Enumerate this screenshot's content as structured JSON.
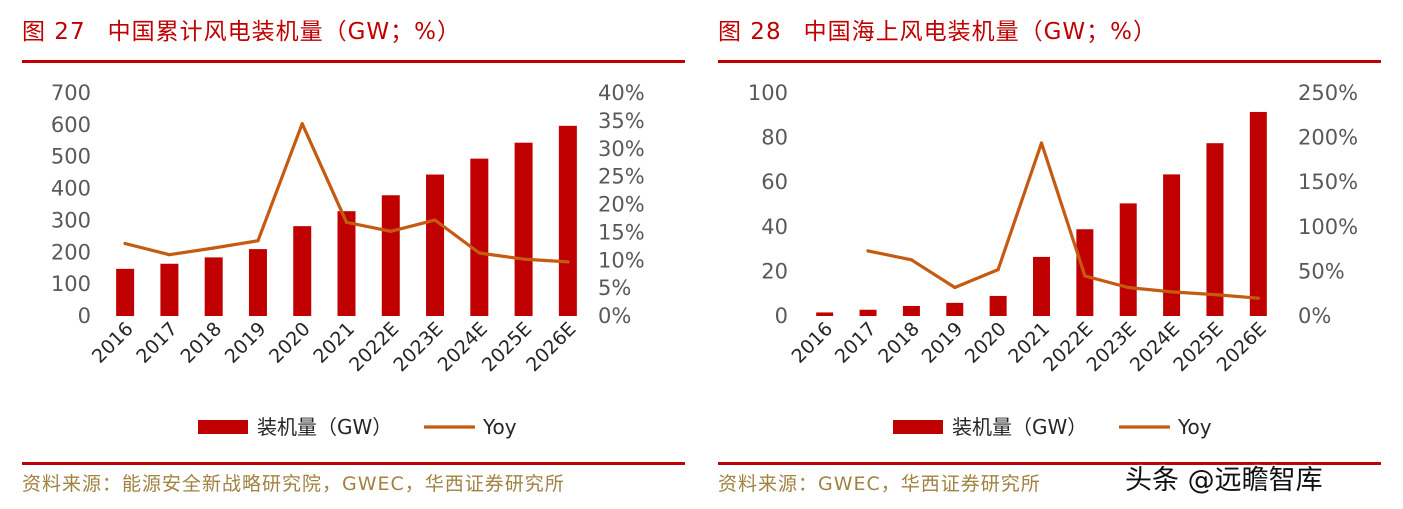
{
  "charts": [
    {
      "figure_number": "图 27",
      "figure_title": "中国累计风电装机量（GW；%）",
      "source": "资料来源：能源安全新战略研究院，GWEC，华西证券研究所"
    },
    {
      "figure_number": "图 28",
      "figure_title": "中国海上风电装机量（GW；%）",
      "source": "资料来源：GWEC，华西证券研究所"
    }
  ],
  "watermark": "头条 @远瞻智库",
  "colors": {
    "bar": "#c00000",
    "line": "#c55a11",
    "title": "#c00000",
    "source": "#a08242"
  },
  "chart_data": [
    {
      "type": "bar",
      "title": "中国累计风电装机量（GW；%）",
      "categories": [
        "2016",
        "2017",
        "2018",
        "2019",
        "2020",
        "2021",
        "2022E",
        "2023E",
        "2024E",
        "2025E",
        "2026E"
      ],
      "series": [
        {
          "name": "装机量（GW）",
          "type": "bar",
          "axis": "left",
          "values": [
            148,
            164,
            184,
            210,
            282,
            329,
            379,
            444,
            494,
            544,
            597
          ]
        },
        {
          "name": "Yoy",
          "type": "line",
          "axis": "right",
          "values": [
            0.13,
            0.11,
            0.122,
            0.135,
            0.345,
            0.168,
            0.152,
            0.172,
            0.113,
            0.102,
            0.097
          ]
        }
      ],
      "y_left": {
        "min": 0,
        "max": 700,
        "ticks": [
          0,
          100,
          200,
          300,
          400,
          500,
          600,
          700
        ],
        "labels": [
          "0",
          "100",
          "200",
          "300",
          "400",
          "500",
          "600",
          "700"
        ]
      },
      "y_right": {
        "min": 0,
        "max": 0.4,
        "ticks": [
          0,
          0.05,
          0.1,
          0.15,
          0.2,
          0.25,
          0.3,
          0.35,
          0.4
        ],
        "labels": [
          "0%",
          "5%",
          "10%",
          "15%",
          "20%",
          "25%",
          "30%",
          "35%",
          "40%"
        ]
      },
      "legend": [
        "装机量（GW）",
        "Yoy"
      ],
      "legend_position": "bottom",
      "grid": false
    },
    {
      "type": "bar",
      "title": "中国海上风电装机量（GW；%）",
      "categories": [
        "2016",
        "2017",
        "2018",
        "2019",
        "2020",
        "2021",
        "2022E",
        "2023E",
        "2024E",
        "2025E",
        "2026E"
      ],
      "series": [
        {
          "name": "装机量（GW）",
          "type": "bar",
          "axis": "left",
          "values": [
            1.6,
            2.8,
            4.5,
            5.9,
            9.0,
            26.5,
            38.9,
            50.5,
            63.5,
            77.5,
            91.5
          ]
        },
        {
          "name": "Yoy",
          "type": "line",
          "axis": "right",
          "values": [
            null,
            0.73,
            0.63,
            0.32,
            0.52,
            1.94,
            0.45,
            0.32,
            0.27,
            0.24,
            0.2
          ]
        }
      ],
      "y_left": {
        "min": 0,
        "max": 100,
        "ticks": [
          0,
          20,
          40,
          60,
          80,
          100
        ],
        "labels": [
          "0",
          "20",
          "40",
          "60",
          "80",
          "100"
        ]
      },
      "y_right": {
        "min": 0,
        "max": 2.5,
        "ticks": [
          0,
          0.5,
          1,
          1.5,
          2,
          2.5
        ],
        "labels": [
          "0%",
          "50%",
          "100%",
          "150%",
          "200%",
          "250%"
        ]
      },
      "legend": [
        "装机量（GW）",
        "Yoy"
      ],
      "legend_position": "bottom",
      "grid": false
    }
  ]
}
